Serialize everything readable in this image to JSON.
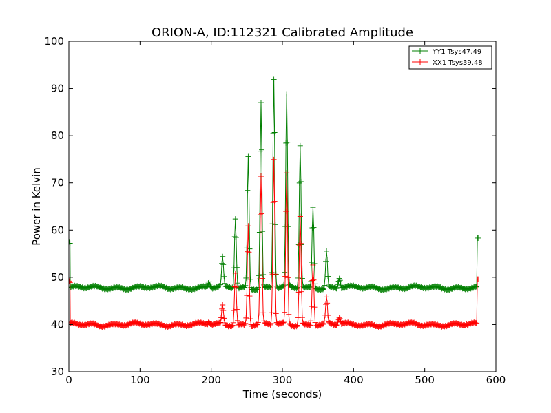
{
  "chart_data": {
    "type": "line",
    "title": "ORION-A, ID:112321 Calibrated Amplitude",
    "xlabel": "Time (seconds)",
    "ylabel": "Power in Kelvin",
    "xlim": [
      0,
      600
    ],
    "ylim": [
      30,
      100
    ],
    "xticks": [
      0,
      100,
      200,
      300,
      400,
      500,
      600
    ],
    "yticks": [
      30,
      40,
      50,
      60,
      70,
      80,
      90,
      100
    ],
    "grid": false,
    "legend_position": "top-right",
    "series": [
      {
        "name": "YY1 Tsys47.49",
        "color": "#007f00",
        "baseline": 47.8,
        "start": 57.5,
        "end": 58.3,
        "peaks": [
          {
            "x": 197,
            "y": 49.0
          },
          {
            "x": 216,
            "y": 54.0
          },
          {
            "x": 234,
            "y": 62.5
          },
          {
            "x": 252,
            "y": 75.5
          },
          {
            "x": 270,
            "y": 87.0
          },
          {
            "x": 288,
            "y": 92.0
          },
          {
            "x": 306,
            "y": 88.5
          },
          {
            "x": 325,
            "y": 78.0
          },
          {
            "x": 343,
            "y": 65.0
          },
          {
            "x": 362,
            "y": 55.5
          },
          {
            "x": 380,
            "y": 50.0
          }
        ]
      },
      {
        "name": "XX1 Tsys39.48",
        "color": "#ff0000",
        "baseline": 40.0,
        "start": 49.2,
        "end": 49.6,
        "peaks": [
          {
            "x": 197,
            "y": 40.6
          },
          {
            "x": 216,
            "y": 44.0
          },
          {
            "x": 234,
            "y": 51.0
          },
          {
            "x": 252,
            "y": 61.0
          },
          {
            "x": 270,
            "y": 71.0
          },
          {
            "x": 288,
            "y": 75.0
          },
          {
            "x": 306,
            "y": 72.0
          },
          {
            "x": 325,
            "y": 63.0
          },
          {
            "x": 343,
            "y": 53.0
          },
          {
            "x": 362,
            "y": 45.5
          },
          {
            "x": 380,
            "y": 41.5
          }
        ]
      }
    ],
    "x_start": 2,
    "x_end": 574
  }
}
